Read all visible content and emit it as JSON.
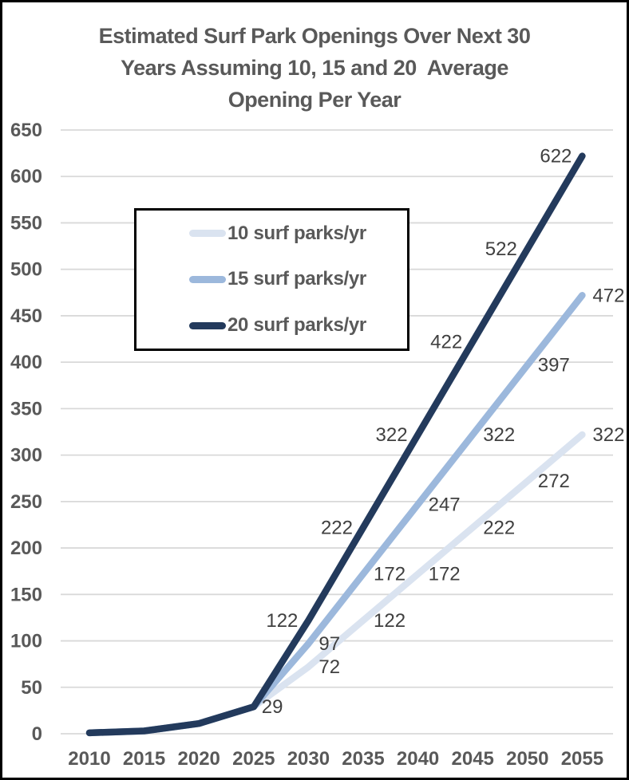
{
  "window": {
    "background_color": "#ffffff",
    "frame_border_color": "#000000"
  },
  "chart": {
    "title_lines": [
      "Estimated Surf Park Openings Over Next 30",
      "Years Assuming 10, 15 and 20  Average",
      "Opening Per Year"
    ],
    "title_color": "#595959"
  },
  "chart_data": {
    "type": "line",
    "title": "Estimated Surf Park Openings Over Next 30 Years Assuming 10, 15 and 20  Average Opening Per Year",
    "xlabel": "",
    "ylabel": "",
    "x_ticks": [
      2010,
      2015,
      2020,
      2025,
      2030,
      2035,
      2040,
      2045,
      2050,
      2055
    ],
    "y_ticks": [
      0,
      50,
      100,
      150,
      200,
      250,
      300,
      350,
      400,
      450,
      500,
      550,
      600,
      650
    ],
    "xlim": [
      2010,
      2055
    ],
    "ylim": [
      0,
      650
    ],
    "grid": "horizontal",
    "gridline_color": "#d9d9d9",
    "tick_label_color": "#595959",
    "data_label_color": "#404040",
    "legend_position": "inside-upper-left",
    "start_label": {
      "year": 2025,
      "value": 29
    },
    "series": [
      {
        "name": "10 surf parks/yr",
        "color": "#dae3f0",
        "points": [
          [
            2010,
            1
          ],
          [
            2015,
            3
          ],
          [
            2020,
            11
          ],
          [
            2025,
            29
          ],
          [
            2030,
            72
          ],
          [
            2035,
            122
          ],
          [
            2040,
            172
          ],
          [
            2045,
            222
          ],
          [
            2050,
            272
          ],
          [
            2055,
            322
          ]
        ],
        "labeled_points": [
          [
            2030,
            72
          ],
          [
            2035,
            122
          ],
          [
            2040,
            172
          ],
          [
            2045,
            222
          ],
          [
            2050,
            272
          ],
          [
            2055,
            322
          ]
        ]
      },
      {
        "name": "15 surf parks/yr",
        "color": "#9cb8dc",
        "points": [
          [
            2010,
            1
          ],
          [
            2015,
            3
          ],
          [
            2020,
            11
          ],
          [
            2025,
            29
          ],
          [
            2030,
            97
          ],
          [
            2035,
            172
          ],
          [
            2040,
            247
          ],
          [
            2045,
            322
          ],
          [
            2050,
            397
          ],
          [
            2055,
            472
          ]
        ],
        "labeled_points": [
          [
            2030,
            97
          ],
          [
            2035,
            172
          ],
          [
            2040,
            247
          ],
          [
            2045,
            322
          ],
          [
            2050,
            397
          ],
          [
            2055,
            472
          ]
        ]
      },
      {
        "name": "20 surf parks/yr",
        "color": "#233a5c",
        "points": [
          [
            2010,
            1
          ],
          [
            2015,
            3
          ],
          [
            2020,
            11
          ],
          [
            2025,
            29
          ],
          [
            2030,
            122
          ],
          [
            2035,
            222
          ],
          [
            2040,
            322
          ],
          [
            2045,
            422
          ],
          [
            2050,
            522
          ],
          [
            2055,
            622
          ]
        ],
        "labeled_points": [
          [
            2030,
            122
          ],
          [
            2035,
            222
          ],
          [
            2040,
            322
          ],
          [
            2045,
            422
          ],
          [
            2050,
            522
          ],
          [
            2055,
            622
          ]
        ]
      }
    ]
  }
}
